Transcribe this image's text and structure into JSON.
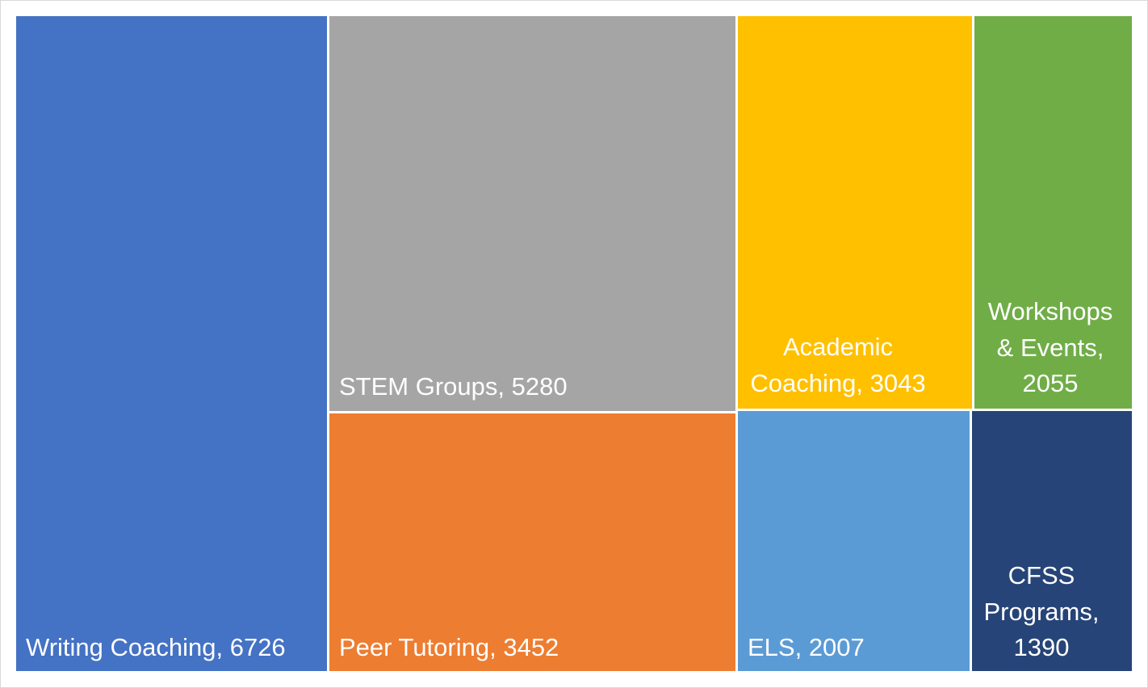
{
  "chart_data": {
    "type": "treemap",
    "title": "",
    "items": [
      {
        "name": "Writing Coaching",
        "value": 6726,
        "label_lines": [
          "Writing Coaching, 6726"
        ],
        "color": "#4472C4"
      },
      {
        "name": "STEM Groups",
        "value": 5280,
        "label_lines": [
          "STEM Groups, 5280"
        ],
        "color": "#A5A5A5"
      },
      {
        "name": "Peer Tutoring",
        "value": 3452,
        "label_lines": [
          "Peer Tutoring, 3452"
        ],
        "color": "#ED7D31"
      },
      {
        "name": "Academic Coaching",
        "value": 3043,
        "label_lines": [
          "Academic",
          "Coaching, 3043"
        ],
        "color": "#FFC000"
      },
      {
        "name": "ELS",
        "value": 2007,
        "label_lines": [
          "ELS, 2007"
        ],
        "color": "#5B9BD5"
      },
      {
        "name": "Workshops & Events",
        "value": 2055,
        "label_lines": [
          "Workshops",
          "& Events,",
          "2055"
        ],
        "color": "#70AD47"
      },
      {
        "name": "CFSS Programs",
        "value": 1390,
        "label_lines": [
          "CFSS",
          "Programs,",
          "1390"
        ],
        "color": "#264478"
      }
    ]
  }
}
